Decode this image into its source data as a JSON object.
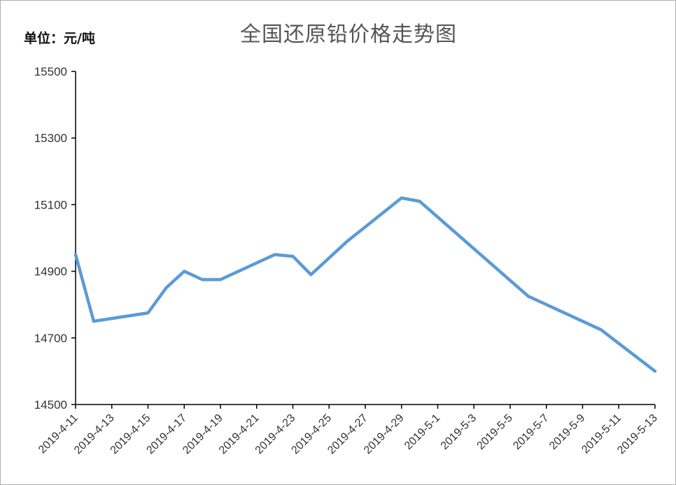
{
  "chart_data": {
    "type": "line",
    "title": "全国还原铅价格走势图",
    "unit_label": "单位：元/吨",
    "xlabel": "",
    "ylabel": "",
    "ylim": [
      14500,
      15500
    ],
    "yticks": [
      14500,
      14700,
      14900,
      15100,
      15300,
      15500
    ],
    "xticks": [
      "2019-4-11",
      "2019-4-13",
      "2019-4-15",
      "2019-4-17",
      "2019-4-19",
      "2019-4-21",
      "2019-4-23",
      "2019-4-25",
      "2019-4-27",
      "2019-4-29",
      "2019-5-1",
      "2019-5-3",
      "2019-5-5",
      "2019-5-7",
      "2019-5-9",
      "2019-5-11",
      "2019-5-13"
    ],
    "grid": false,
    "series": [
      {
        "color": "#5b9bd5",
        "points": [
          [
            "2019-4-11",
            14950
          ],
          [
            "2019-4-12",
            14750
          ],
          [
            "2019-4-15",
            14775
          ],
          [
            "2019-4-16",
            14850
          ],
          [
            "2019-4-17",
            14900
          ],
          [
            "2019-4-18",
            14875
          ],
          [
            "2019-4-19",
            14875
          ],
          [
            "2019-4-22",
            14950
          ],
          [
            "2019-4-23",
            14945
          ],
          [
            "2019-4-24",
            14890
          ],
          [
            "2019-4-26",
            14990
          ],
          [
            "2019-4-29",
            15120
          ],
          [
            "2019-4-30",
            15110
          ],
          [
            "2019-5-6",
            14825
          ],
          [
            "2019-5-10",
            14725
          ],
          [
            "2019-5-13",
            14600
          ]
        ]
      }
    ]
  }
}
